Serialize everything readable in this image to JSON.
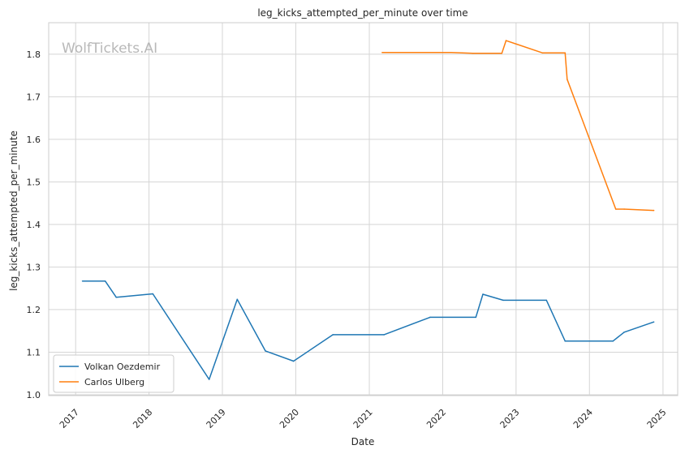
{
  "chart_data": {
    "type": "line",
    "title": "leg_kicks_attempted_per_minute over time",
    "xlabel": "Date",
    "ylabel": "leg_kicks_attempted_per_minute",
    "watermark": "WolfTickets.AI",
    "xlim": [
      "2016-08-20",
      "2025-03-15"
    ],
    "ylim": [
      0.998,
      1.874
    ],
    "x_ticks": [
      "2017",
      "2018",
      "2019",
      "2020",
      "2021",
      "2022",
      "2023",
      "2024",
      "2025"
    ],
    "y_ticks": [
      "1.0",
      "1.1",
      "1.2",
      "1.3",
      "1.4",
      "1.5",
      "1.6",
      "1.7",
      "1.8"
    ],
    "grid": true,
    "legend_position": "lower-left",
    "series": [
      {
        "name": "Volkan Oezdemir",
        "color": "#1f77b4",
        "points": [
          {
            "x": "2017-02-04",
            "y": 1.267
          },
          {
            "x": "2017-05-28",
            "y": 1.267
          },
          {
            "x": "2017-07-22",
            "y": 1.229
          },
          {
            "x": "2018-01-20",
            "y": 1.237
          },
          {
            "x": "2018-10-27",
            "y": 1.036
          },
          {
            "x": "2019-03-16",
            "y": 1.224
          },
          {
            "x": "2019-08-03",
            "y": 1.103
          },
          {
            "x": "2019-12-21",
            "y": 1.079
          },
          {
            "x": "2020-07-04",
            "y": 1.141
          },
          {
            "x": "2021-03-15",
            "y": 1.141
          },
          {
            "x": "2021-10-30",
            "y": 1.182
          },
          {
            "x": "2022-06-15",
            "y": 1.182
          },
          {
            "x": "2022-07-20",
            "y": 1.236
          },
          {
            "x": "2022-10-29",
            "y": 1.222
          },
          {
            "x": "2023-06-01",
            "y": 1.222
          },
          {
            "x": "2023-09-02",
            "y": 1.126
          },
          {
            "x": "2024-04-27",
            "y": 1.126
          },
          {
            "x": "2024-06-22",
            "y": 1.147
          },
          {
            "x": "2024-11-16",
            "y": 1.171
          }
        ]
      },
      {
        "name": "Carlos Ulberg",
        "color": "#ff7f0e",
        "points": [
          {
            "x": "2021-03-06",
            "y": 1.804
          },
          {
            "x": "2022-02-12",
            "y": 1.804
          },
          {
            "x": "2022-06-01",
            "y": 1.802
          },
          {
            "x": "2022-10-22",
            "y": 1.802
          },
          {
            "x": "2022-11-12",
            "y": 1.832
          },
          {
            "x": "2023-05-13",
            "y": 1.803
          },
          {
            "x": "2023-09-02",
            "y": 1.803
          },
          {
            "x": "2023-09-12",
            "y": 1.741
          },
          {
            "x": "2024-05-11",
            "y": 1.436
          },
          {
            "x": "2024-06-22",
            "y": 1.436
          },
          {
            "x": "2024-11-16",
            "y": 1.433
          }
        ]
      }
    ]
  }
}
